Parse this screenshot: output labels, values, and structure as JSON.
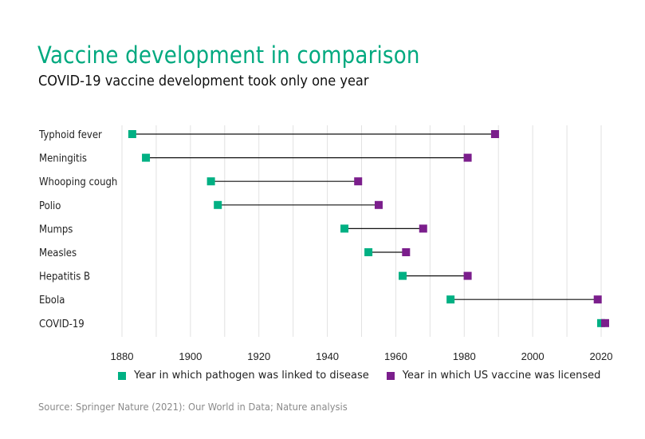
{
  "chart_data": {
    "type": "dumbbell",
    "title": "Vaccine development in comparison",
    "subtitle": "COVID-19 vaccine development took only one year",
    "xlabel": "",
    "ylabel": "",
    "xlim": [
      1880,
      2020
    ],
    "x_ticks": [
      1880,
      1900,
      1920,
      1940,
      1960,
      1980,
      2000,
      2020
    ],
    "x_gridlines": [
      1880,
      1890,
      1900,
      1910,
      1920,
      1930,
      1940,
      1950,
      1960,
      1970,
      1980,
      1990,
      2000,
      2010,
      2020
    ],
    "grid": true,
    "categories": [
      "Typhoid fever",
      "Meningitis",
      "Whooping cough",
      "Polio",
      "Mumps",
      "Measles",
      "Hepatitis B",
      "Ebola",
      "COVID-19"
    ],
    "series": [
      {
        "name": "Year in which pathogen was linked to disease",
        "color": "#00b083",
        "values": [
          1883,
          1887,
          1906,
          1908,
          1945,
          1952,
          1962,
          1976,
          2020
        ]
      },
      {
        "name": "Year in which US vaccine was licensed",
        "color": "#7b1e8c",
        "values": [
          1989,
          1981,
          1949,
          1955,
          1968,
          1963,
          1981,
          2019,
          2021
        ]
      }
    ],
    "legend_position": "bottom",
    "source": "Source: Springer Nature (2021): Our World in Data; Nature analysis"
  }
}
